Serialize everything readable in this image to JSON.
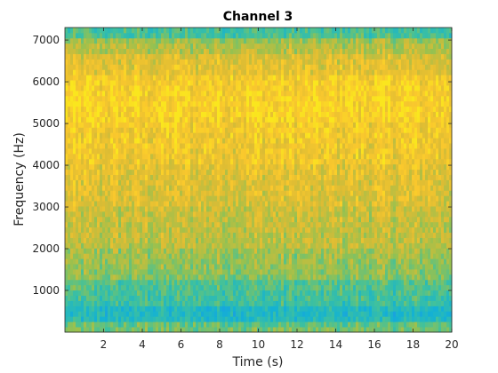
{
  "chart_data": {
    "type": "heatmap",
    "title": "Channel 3",
    "xlabel": "Time (s)",
    "ylabel": "Frequency (Hz)",
    "xlim": [
      0,
      20
    ],
    "ylim": [
      0,
      7300
    ],
    "xticks": [
      2,
      4,
      6,
      8,
      10,
      12,
      14,
      16,
      18,
      20
    ],
    "yticks": [
      1000,
      2000,
      3000,
      4000,
      5000,
      6000,
      7000
    ],
    "grid": false,
    "colormap": "parula",
    "color_min": "#21ade0",
    "color_max": "#fbe135",
    "frequency_band_levels": [
      {
        "band": [
          0,
          200
        ],
        "level": 0.55
      },
      {
        "band": [
          200,
          600
        ],
        "level": 0.3
      },
      {
        "band": [
          600,
          1200
        ],
        "level": 0.45
      },
      {
        "band": [
          1200,
          2000
        ],
        "level": 0.62
      },
      {
        "band": [
          2000,
          3000
        ],
        "level": 0.72
      },
      {
        "band": [
          3000,
          4000
        ],
        "level": 0.8
      },
      {
        "band": [
          4000,
          5000
        ],
        "level": 0.87
      },
      {
        "band": [
          5000,
          6200
        ],
        "level": 0.93
      },
      {
        "band": [
          6200,
          6700
        ],
        "level": 0.8
      },
      {
        "band": [
          6700,
          7000
        ],
        "level": 0.68
      },
      {
        "band": [
          7000,
          7300
        ],
        "level": 0.45
      }
    ]
  }
}
